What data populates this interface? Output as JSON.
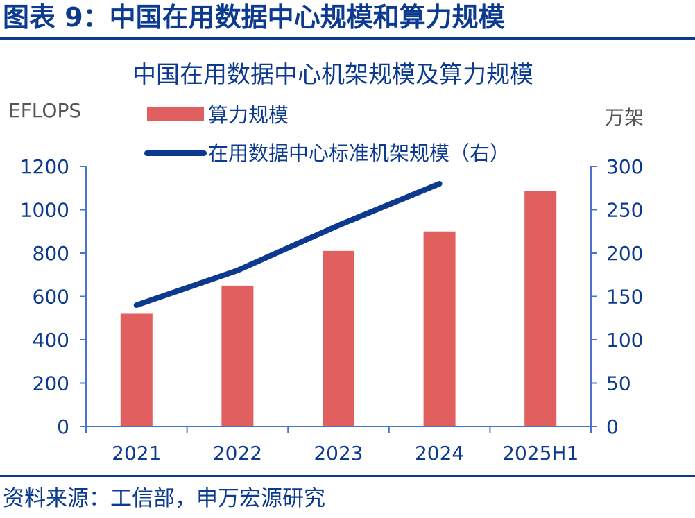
{
  "figure": {
    "label": "图表 9：中国在用数据中心规模和算力规模",
    "source": "资料来源：工信部，申万宏源研究"
  },
  "colors": {
    "bar": "#e15f5f",
    "line": "#0b3a8f",
    "axis": "#4a74c9",
    "text": "#0b3a8f"
  },
  "chart_data": {
    "type": "bar+line",
    "title": "中国在用数据中心机架规模及算力规模",
    "categories": [
      "2021",
      "2022",
      "2023",
      "2024",
      "2025H1"
    ],
    "series": [
      {
        "name": "算力规模",
        "type": "bar",
        "axis": "left",
        "values": [
          520,
          650,
          810,
          900,
          1085
        ]
      },
      {
        "name": "在用数据中心标准机架规模（右）",
        "type": "line",
        "axis": "right",
        "values": [
          140,
          180,
          232,
          280,
          null
        ]
      }
    ],
    "y_left": {
      "label": "EFLOPS",
      "range": [
        0,
        1200
      ],
      "ticks": [
        0,
        200,
        400,
        600,
        800,
        1000,
        1200
      ]
    },
    "y_right": {
      "label": "万架",
      "range": [
        0,
        300
      ],
      "ticks": [
        0,
        50,
        100,
        150,
        200,
        250,
        300
      ]
    },
    "grid": false,
    "legend": "top-center"
  }
}
